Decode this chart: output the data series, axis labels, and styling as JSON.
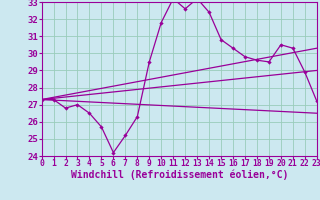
{
  "xlabel": "Windchill (Refroidissement éolien,°C)",
  "bg_color": "#cce8f0",
  "line_color": "#990099",
  "grid_color": "#99ccbb",
  "x_min": 0,
  "x_max": 23,
  "y_min": 24,
  "y_max": 33,
  "x_ticks": [
    0,
    1,
    2,
    3,
    4,
    5,
    6,
    7,
    8,
    9,
    10,
    11,
    12,
    13,
    14,
    15,
    16,
    17,
    18,
    19,
    20,
    21,
    22,
    23
  ],
  "y_ticks": [
    24,
    25,
    26,
    27,
    28,
    29,
    30,
    31,
    32,
    33
  ],
  "line1_x": [
    0,
    1,
    2,
    3,
    4,
    5,
    6,
    7,
    8,
    9,
    10,
    11,
    12,
    13,
    14,
    15,
    16,
    17,
    18,
    19,
    20,
    21,
    22,
    23
  ],
  "line1_y": [
    27.3,
    27.3,
    26.8,
    27.0,
    26.5,
    25.7,
    24.2,
    25.2,
    26.3,
    29.5,
    31.8,
    33.2,
    32.6,
    33.2,
    32.4,
    30.8,
    30.3,
    29.8,
    29.6,
    29.5,
    30.5,
    30.3,
    28.9,
    27.2
  ],
  "line2_x": [
    0,
    23
  ],
  "line2_y": [
    27.3,
    30.3
  ],
  "line3_x": [
    0,
    23
  ],
  "line3_y": [
    27.3,
    29.0
  ],
  "line4_x": [
    0,
    23
  ],
  "line4_y": [
    27.3,
    26.5
  ],
  "font_size_xlabel": 7,
  "font_size_yticks": 6.5,
  "font_size_xticks": 5.8,
  "marker": "D",
  "marker_size": 2.2,
  "linewidth": 0.9
}
